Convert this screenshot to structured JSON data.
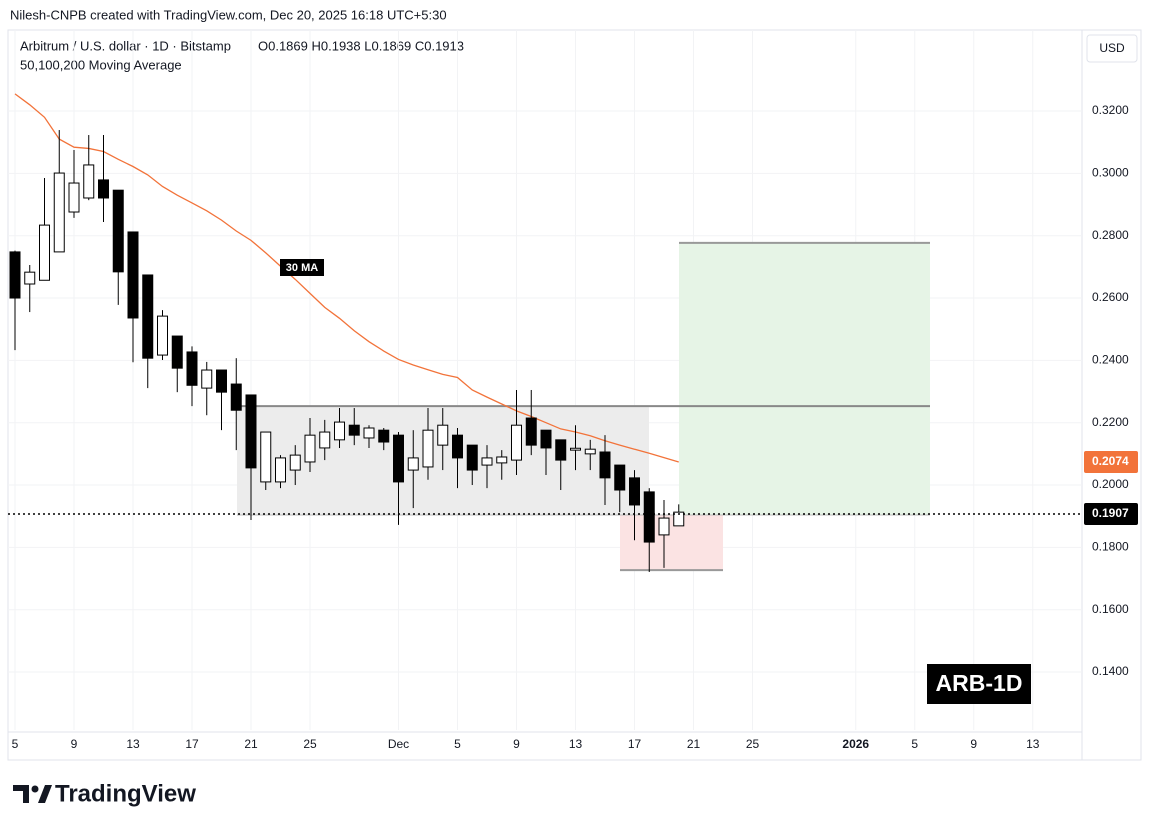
{
  "chart_data": {
    "type": "candlestick",
    "credit": "Nilesh-CNPB created with TradingView.com, Dec 20, 2025 16:18 UTC+5:30",
    "title": "Arbitrum / U.S. dollar · 1D · Bitstamp",
    "ohlc_label": "O0.1869 H0.1938 L0.1869 C0.1913",
    "indicator": "50,100,200 Moving Average",
    "currency": "USD",
    "badge": "ARB-1D",
    "brand": "TradingView",
    "categories": [
      "5",
      null,
      null,
      null,
      "9",
      null,
      null,
      null,
      "13",
      null,
      null,
      null,
      "17",
      null,
      null,
      null,
      "21",
      null,
      null,
      null,
      "25",
      null,
      null,
      null,
      null,
      null,
      "Dec",
      null,
      null,
      null,
      "5",
      null,
      null,
      null,
      "9",
      null,
      null,
      null,
      "13",
      null,
      null,
      null,
      "17",
      null,
      null,
      null,
      "21",
      null,
      null,
      null,
      "25",
      null,
      null,
      null,
      null,
      null,
      null,
      "2026",
      null,
      null,
      null,
      "5",
      null,
      null,
      null,
      "9",
      null,
      null,
      null,
      "13",
      null,
      null,
      null
    ],
    "open": [
      0.2748,
      0.2645,
      0.2657,
      0.2748,
      0.2876,
      0.2921,
      0.2979,
      0.2946,
      0.2812,
      0.2674,
      0.2417,
      0.2478,
      0.2427,
      0.2311,
      0.2369,
      0.2324,
      0.2289,
      0.201,
      0.201,
      0.2048,
      0.2074,
      0.2119,
      0.2145,
      0.2192,
      0.2151,
      0.2176,
      0.216,
      0.2048,
      0.2058,
      0.2128,
      0.216,
      0.2128,
      0.2064,
      0.2071,
      0.208,
      0.2215,
      0.2176,
      0.2145,
      0.2112,
      0.21,
      0.2106,
      0.2064,
      0.2023,
      0.1978,
      0.184,
      0.1869,
      null,
      null,
      null,
      null,
      null,
      null,
      null,
      null,
      null,
      null,
      null,
      null,
      null,
      null,
      null,
      null,
      null,
      null,
      null,
      null,
      null,
      null,
      null,
      null,
      null,
      null,
      null
    ],
    "high": [
      0.2752,
      0.2706,
      0.2985,
      0.3139,
      0.3075,
      0.3123,
      0.3123,
      0.2946,
      0.2812,
      0.2674,
      0.2561,
      0.2478,
      0.2445,
      0.2395,
      0.2369,
      0.2407,
      0.2289,
      0.217,
      0.2096,
      0.2128,
      0.2215,
      0.2209,
      0.2247,
      0.2247,
      0.2192,
      0.2183,
      0.217,
      0.2176,
      0.2247,
      0.2247,
      0.2183,
      0.2128,
      0.2128,
      0.2112,
      0.2305,
      0.2305,
      0.2176,
      0.2145,
      0.2192,
      0.2145,
      0.216,
      0.2064,
      0.2048,
      0.199,
      0.1952,
      0.1938,
      null,
      null,
      null,
      null,
      null,
      null,
      null,
      null,
      null,
      null,
      null,
      null,
      null,
      null,
      null,
      null,
      null,
      null,
      null,
      null,
      null,
      null,
      null,
      null,
      null,
      null,
      null
    ],
    "low": [
      0.2433,
      0.2555,
      0.2657,
      0.2748,
      0.2857,
      0.2914,
      0.2844,
      0.2578,
      0.2394,
      0.2311,
      0.2401,
      0.2298,
      0.2253,
      0.2224,
      0.2176,
      0.2112,
      0.1888,
      0.1984,
      0.199,
      0.2,
      0.2042,
      0.208,
      0.2119,
      0.2128,
      0.2119,
      0.2112,
      0.1872,
      0.1926,
      0.2017,
      0.2048,
      0.199,
      0.2,
      0.199,
      0.2017,
      0.2032,
      0.2096,
      0.2032,
      0.1984,
      0.2048,
      0.2048,
      0.1936,
      0.1913,
      0.1823,
      0.1721,
      0.1734,
      0.1869,
      null,
      null,
      null,
      null,
      null,
      null,
      null,
      null,
      null,
      null,
      null,
      null,
      null,
      null,
      null,
      null,
      null,
      null,
      null,
      null,
      null,
      null,
      null,
      null,
      null,
      null,
      null
    ],
    "close": [
      0.26,
      0.2683,
      0.2834,
      0.3001,
      0.2969,
      0.3027,
      0.2921,
      0.2684,
      0.2536,
      0.2407,
      0.2542,
      0.2375,
      0.232,
      0.2369,
      0.2298,
      0.224,
      0.2055,
      0.217,
      0.2087,
      0.2096,
      0.216,
      0.217,
      0.2202,
      0.216,
      0.2183,
      0.2138,
      0.201,
      0.2087,
      0.2176,
      0.2192,
      0.2087,
      0.2048,
      0.2087,
      0.209,
      0.2192,
      0.2128,
      0.2119,
      0.208,
      0.2118,
      0.2115,
      0.2023,
      0.1984,
      0.1936,
      0.1817,
      0.1894,
      0.1913,
      null,
      null,
      null,
      null,
      null,
      null,
      null,
      null,
      null,
      null,
      null,
      null,
      null,
      null,
      null,
      null,
      null,
      null,
      null,
      null,
      null,
      null,
      null,
      null,
      null,
      null,
      null
    ],
    "up_color": "#ffffff",
    "down_color": "#000000",
    "ma": {
      "name": "30 MA",
      "color": "#f2733a",
      "values": [
        0.3255,
        0.322,
        0.318,
        0.311,
        0.3084,
        0.308,
        0.307,
        0.3045,
        0.3022,
        0.2995,
        0.2958,
        0.293,
        0.2905,
        0.288,
        0.285,
        0.2815,
        0.2785,
        0.2745,
        0.2702,
        0.266,
        0.2615,
        0.257,
        0.2535,
        0.2495,
        0.246,
        0.243,
        0.2403,
        0.2385,
        0.237,
        0.2355,
        0.2345,
        0.2305,
        0.2282,
        0.226,
        0.2238,
        0.222,
        0.22,
        0.218,
        0.217,
        0.2158,
        0.2142,
        0.2128,
        0.2115,
        0.2102,
        0.2088,
        0.2074,
        null,
        null,
        null,
        null,
        null,
        null,
        null,
        null,
        null,
        null,
        null,
        null,
        null,
        null,
        null,
        null,
        null,
        null,
        null,
        null,
        null,
        null,
        null,
        null,
        null,
        null,
        null
      ]
    },
    "ma_last": 0.2074,
    "last_price": 0.1907,
    "zones": [
      {
        "top": 0.2253,
        "bottom": 0.1904,
        "color": "#ececec"
      },
      {
        "top": 0.2777,
        "bottom": 0.1904,
        "color": "#e6f4e6"
      },
      {
        "top": 0.1904,
        "bottom": 0.1727,
        "color": "#fbe3e3"
      }
    ],
    "ylim": [
      0.1214,
      0.346
    ],
    "yticks": [
      {
        "value": 0.14,
        "label": "0.1400"
      },
      {
        "value": 0.16,
        "label": "0.1600"
      },
      {
        "value": 0.18,
        "label": "0.1800"
      },
      {
        "value": 0.2,
        "label": "0.2000"
      },
      {
        "value": 0.22,
        "label": "0.2200"
      },
      {
        "value": 0.24,
        "label": "0.2400"
      },
      {
        "value": 0.26,
        "label": "0.2600"
      },
      {
        "value": 0.28,
        "label": "0.2800"
      },
      {
        "value": 0.3,
        "label": "0.3000"
      },
      {
        "value": 0.32,
        "label": "0.3200"
      }
    ]
  }
}
